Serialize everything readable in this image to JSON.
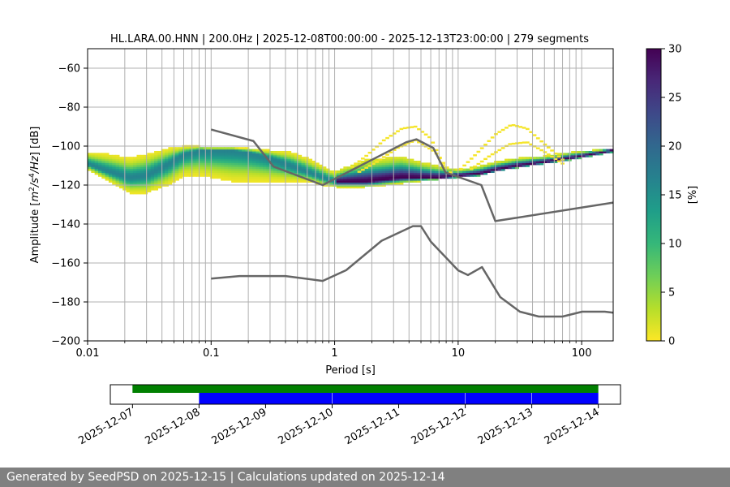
{
  "chart_data": [
    {
      "type": "heatmap",
      "title": "HL.LARA.00.HNN | 200.0Hz | 2025-12-08T00:00:00 - 2025-12-13T23:00:00 | 279 segments",
      "xlabel": "Period [s]",
      "ylabel_parts": [
        "Amplitude [",
        "m",
        "2",
        "/",
        "s",
        "4",
        "/",
        "Hz",
        "] [dB]"
      ],
      "x_scale": "log",
      "xlim": [
        0.01,
        180
      ],
      "ylim": [
        -200,
        -50
      ],
      "x_ticks": [
        0.01,
        0.1,
        1,
        10,
        100
      ],
      "x_tick_labels": [
        "0.01",
        "0.1",
        "1",
        "10",
        "100"
      ],
      "y_ticks": [
        -200,
        -180,
        -160,
        -140,
        -120,
        -100,
        -80,
        -60
      ],
      "y_tick_labels": [
        "−200",
        "−180",
        "−160",
        "−140",
        "−120",
        "−100",
        "−80",
        "−60"
      ],
      "grid": true,
      "colorbar": {
        "label": "[%]",
        "range": [
          0,
          30
        ],
        "ticks": [
          0,
          5,
          10,
          15,
          20,
          25,
          30
        ],
        "tick_labels": [
          "0",
          "5",
          "10",
          "15",
          "20",
          "25",
          "30"
        ],
        "colormap": [
          "#fde725",
          "#b5de2b",
          "#6ece58",
          "#35b779",
          "#1f9e89",
          "#26828e",
          "#31688e",
          "#3e4989",
          "#482878",
          "#440154"
        ]
      },
      "mode_curve": {
        "period": [
          0.01,
          0.015,
          0.022,
          0.03,
          0.045,
          0.06,
          0.08,
          0.1,
          0.15,
          0.2,
          0.3,
          0.45,
          0.6,
          0.8,
          1.0,
          1.3,
          1.8,
          2.5,
          3.5,
          5,
          7,
          10,
          15,
          20,
          30,
          50,
          80,
          120,
          180
        ],
        "amplitude": [
          -109,
          -113,
          -116,
          -115,
          -109,
          -104,
          -102,
          -102,
          -102,
          -103,
          -106,
          -110,
          -113,
          -116,
          -118,
          -118,
          -118,
          -117,
          -116,
          -116,
          -116,
          -115,
          -114,
          -112,
          -110,
          -108,
          -106,
          -104,
          -102
        ]
      },
      "spread": {
        "period": [
          0.01,
          0.015,
          0.022,
          0.03,
          0.045,
          0.06,
          0.08,
          0.1,
          0.15,
          0.2,
          0.3,
          0.45,
          0.6,
          0.8,
          1.0,
          1.3,
          1.8,
          2.5,
          3.5,
          5,
          7,
          10,
          15,
          20,
          30,
          50,
          80,
          120,
          180
        ],
        "upper": [
          -103,
          -104,
          -106,
          -104,
          -101,
          -100,
          -100,
          -101,
          -101,
          -101,
          -102,
          -103,
          -106,
          -110,
          -113,
          -110,
          -107,
          -106,
          -105,
          -108,
          -110,
          -112,
          -110,
          -108,
          -106,
          -105,
          -103,
          -102,
          -101
        ],
        "lower": [
          -112,
          -118,
          -124,
          -124,
          -120,
          -115,
          -115,
          -116,
          -118,
          -118,
          -118,
          -118,
          -118,
          -120,
          -121,
          -121,
          -121,
          -120,
          -119,
          -118,
          -117,
          -116,
          -115,
          -113,
          -111,
          -109,
          -107,
          -105,
          -103
        ]
      },
      "outlier_arcs": [
        {
          "period": [
            1.3,
            1.8,
            2.5,
            3.5,
            4.5,
            6,
            8
          ],
          "amplitude": [
            -112,
            -105,
            -97,
            -91,
            -90,
            -96,
            -113
          ]
        },
        {
          "period": [
            1.5,
            2.2,
            3.2,
            4.5,
            6.5,
            9
          ],
          "amplitude": [
            -114,
            -108,
            -101,
            -97,
            -103,
            -115
          ]
        },
        {
          "period": [
            10,
            14,
            20,
            27,
            36,
            50,
            70
          ],
          "amplitude": [
            -113,
            -104,
            -94,
            -89,
            -91,
            -99,
            -107
          ]
        },
        {
          "period": [
            12,
            18,
            26,
            36,
            50,
            70
          ],
          "amplitude": [
            -113,
            -105,
            -99,
            -98,
            -103,
            -109
          ]
        }
      ],
      "nlnm": {
        "period": [
          0.1,
          0.17,
          0.4,
          0.8,
          1.24,
          2.4,
          4.3,
          5,
          6,
          10,
          12,
          15.6,
          21.9,
          31.6,
          45,
          70,
          101,
          154,
          180
        ],
        "amplitude": [
          -168,
          -166.7,
          -166.7,
          -169.2,
          -163.7,
          -148.6,
          -141.1,
          -141.1,
          -149,
          -163.8,
          -166.2,
          -162.1,
          -177.5,
          -185,
          -187.5,
          -187.5,
          -185,
          -185,
          -185.5
        ]
      },
      "nhnm": {
        "period": [
          0.1,
          0.22,
          0.32,
          0.8,
          3.8,
          4.6,
          6.3,
          7.9,
          15.4,
          20,
          180
        ],
        "amplitude": [
          -91.5,
          -97.4,
          -110.5,
          -120,
          -98,
          -96.5,
          -101,
          -113.5,
          -120,
          -138.5,
          -129
        ]
      }
    },
    {
      "type": "bar",
      "x_tick_labels": [
        "2025-12-07",
        "2025-12-08",
        "2025-12-09",
        "2025-12-10",
        "2025-12-11",
        "2025-12-12",
        "2025-12-13",
        "2025-12-14"
      ],
      "xlim": [
        "2025-12-06T16:00:00",
        "2025-12-14T08:00:00"
      ],
      "available_span": [
        "2025-12-07T00:00:00",
        "2025-12-14T00:00:00"
      ],
      "used_segments": [
        [
          "2025-12-08T00:00:00",
          "2025-12-09T23:55:00"
        ],
        [
          "2025-12-10T00:05:00",
          "2025-12-11T23:55:00"
        ],
        [
          "2025-12-12T00:05:00",
          "2025-12-12T23:55:00"
        ],
        [
          "2025-12-13T00:05:00",
          "2025-12-14T00:00:00"
        ]
      ],
      "colors": {
        "available": "#008000",
        "used": "#0000ff"
      }
    }
  ],
  "footer": {
    "text": "Generated by SeedPSD on 2025-12-15 | Calculations updated on 2025-12-14"
  }
}
